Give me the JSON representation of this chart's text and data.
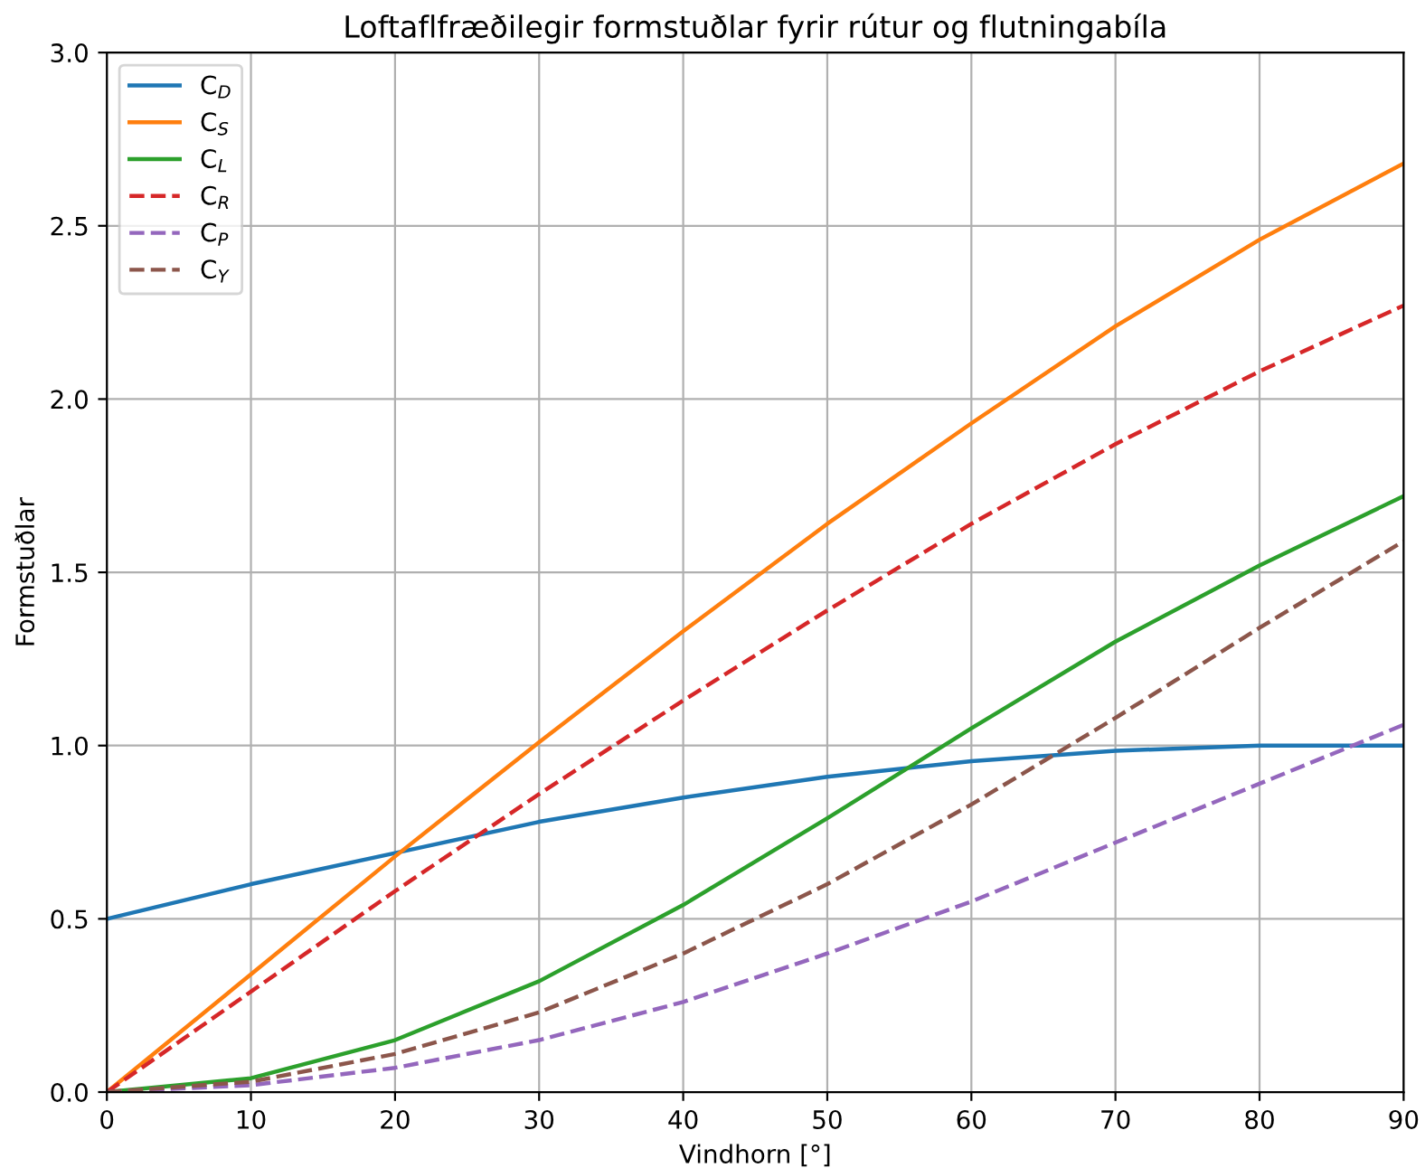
{
  "chart_data": {
    "type": "line",
    "title": "Loftaflfræðilegir formstuðlar fyrir rútur og flutningabíla",
    "xlabel": "Vindhorn [°]",
    "ylabel": "Formstuðlar",
    "x": [
      0,
      10,
      20,
      30,
      40,
      50,
      60,
      70,
      80,
      90
    ],
    "series": [
      {
        "name": "C$_{D}$",
        "color": "#1f77b4",
        "line_style": "solid",
        "values": [
          0.5,
          0.6,
          0.69,
          0.78,
          0.85,
          0.91,
          0.955,
          0.985,
          1.0,
          1.0
        ]
      },
      {
        "name": "C$_{S}$",
        "color": "#ff7f0e",
        "line_style": "solid",
        "values": [
          0,
          0.34,
          0.68,
          1.01,
          1.33,
          1.64,
          1.93,
          2.21,
          2.46,
          2.68
        ]
      },
      {
        "name": "C$_{L}$",
        "color": "#2ca02c",
        "line_style": "solid",
        "values": [
          0,
          0.04,
          0.15,
          0.32,
          0.54,
          0.79,
          1.05,
          1.3,
          1.52,
          1.72
        ]
      },
      {
        "name": "C$_{R}$",
        "color": "#d62728",
        "line_style": "dashed",
        "values": [
          0,
          0.29,
          0.58,
          0.86,
          1.13,
          1.39,
          1.64,
          1.87,
          2.08,
          2.27
        ]
      },
      {
        "name": "C$_{P}$",
        "color": "#9467bd",
        "line_style": "dashed",
        "values": [
          0,
          0.02,
          0.07,
          0.15,
          0.26,
          0.4,
          0.55,
          0.72,
          0.89,
          1.06
        ]
      },
      {
        "name": "C$_{Y}$",
        "color": "#8c564b",
        "line_style": "dashed",
        "values": [
          0,
          0.03,
          0.11,
          0.23,
          0.4,
          0.6,
          0.83,
          1.08,
          1.34,
          1.59
        ]
      }
    ],
    "xlim": [
      0,
      90
    ],
    "ylim": [
      0,
      3.0
    ],
    "xticks": [
      0,
      10,
      20,
      30,
      40,
      50,
      60,
      70,
      80,
      90
    ],
    "yticks": [
      {
        "value": 0,
        "label": "0.0"
      },
      0.5,
      {
        "value": 1,
        "label": "1.0"
      },
      1.5,
      {
        "value": 2,
        "label": "2.0"
      },
      2.5,
      {
        "value": 3,
        "label": "3.0"
      }
    ],
    "grid": true,
    "legend": "top left",
    "marker": "none"
  }
}
